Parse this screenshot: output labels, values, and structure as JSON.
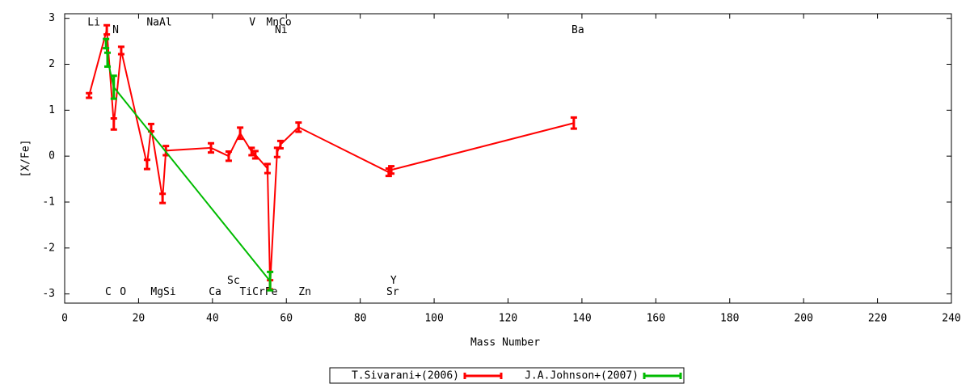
{
  "chart_data": {
    "type": "errorbar-line",
    "xlabel": "Mass Number",
    "ylabel": "[X/Fe]",
    "xlim": [
      0,
      240
    ],
    "ylim": [
      -3.2,
      3.1
    ],
    "xticks": [
      0,
      20,
      40,
      60,
      80,
      100,
      120,
      140,
      160,
      180,
      200,
      220,
      240
    ],
    "yticks": [
      -3,
      -2,
      -1,
      0,
      1,
      2,
      3
    ],
    "legend": "bottom",
    "series": [
      {
        "name": "T.Sivarani+(2006)",
        "color": "#ff0000",
        "x": [
          6.6,
          11.4,
          13.3,
          15.3,
          22.3,
          23.4,
          26.5,
          27.4,
          39.6,
          44.4,
          47.5,
          50.6,
          51.6,
          54.9,
          55.6,
          57.5,
          58.4,
          63.3,
          87.7,
          88.4,
          137.8
        ],
        "values": [
          1.32,
          2.75,
          0.7,
          2.3,
          -0.18,
          0.62,
          -0.92,
          0.12,
          0.18,
          0.0,
          0.5,
          0.1,
          0.03,
          -0.27,
          -2.8,
          0.08,
          0.25,
          0.63,
          -0.35,
          -0.3,
          0.72
        ],
        "errors": [
          0.05,
          0.1,
          0.12,
          0.08,
          0.1,
          0.08,
          0.1,
          0.1,
          0.1,
          0.1,
          0.12,
          0.08,
          0.08,
          0.1,
          0.1,
          0.1,
          0.08,
          0.1,
          0.08,
          0.08,
          0.12
        ]
      },
      {
        "name": "J.A.Johnson+(2007)",
        "color": "#00bb00",
        "x": [
          11.2,
          11.6,
          13.3,
          55.6
        ],
        "values": [
          2.45,
          2.1,
          1.5,
          -2.72
        ],
        "errors": [
          0.1,
          0.15,
          0.25,
          0.2
        ]
      }
    ],
    "annotations": [
      {
        "text": "Li",
        "x": 7.9,
        "y": 2.91
      },
      {
        "text": "N",
        "x": 13.8,
        "y": 2.74
      },
      {
        "text": "NaAl",
        "x": 25.6,
        "y": 2.91
      },
      {
        "text": "V",
        "x": 50.8,
        "y": 2.91
      },
      {
        "text": "MnCo",
        "x": 58,
        "y": 2.91
      },
      {
        "text": "Ni",
        "x": 58.6,
        "y": 2.74
      },
      {
        "text": "Ba",
        "x": 138.9,
        "y": 2.74
      },
      {
        "text": "C",
        "x": 11.8,
        "y": -2.96
      },
      {
        "text": "O",
        "x": 15.8,
        "y": -2.96
      },
      {
        "text": "MgSi",
        "x": 26.7,
        "y": -2.96
      },
      {
        "text": "Ca",
        "x": 40.7,
        "y": -2.96
      },
      {
        "text": "Sc",
        "x": 45.7,
        "y": -2.72
      },
      {
        "text": "TiCrFe",
        "x": 52.5,
        "y": -2.96
      },
      {
        "text": "Zn",
        "x": 65,
        "y": -2.96
      },
      {
        "text": "Y",
        "x": 89,
        "y": -2.72
      },
      {
        "text": "Sr",
        "x": 88.8,
        "y": -2.96
      }
    ]
  }
}
